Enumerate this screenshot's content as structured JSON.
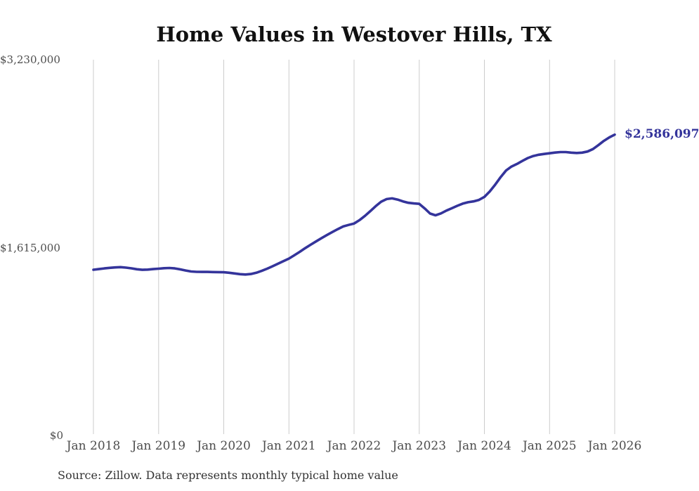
{
  "title": "Home Values in Westover Hills, TX",
  "source_note": "Source: Zillow. Data represents monthly typical home value",
  "latest_value_label": "$2,586,097",
  "colors": {
    "line": "#34349b",
    "grid": "#cccccc",
    "axis_text": "#4d4d4d",
    "title_text": "#111111",
    "source_text": "#333333",
    "background": "#ffffff"
  },
  "chart_data": {
    "type": "line",
    "title": "Home Values in Westover Hills, TX",
    "xlabel": "",
    "ylabel": "",
    "legend": "none",
    "grid": "vertical-only",
    "ylim": [
      0,
      3230000
    ],
    "y_ticks": [
      {
        "label": "$0",
        "value": 0
      },
      {
        "label": "$1,615,000",
        "value": 1615000
      },
      {
        "label": "$3,230,000",
        "value": 3230000
      }
    ],
    "x_tick_labels": [
      "Jan 2018",
      "Jan 2019",
      "Jan 2020",
      "Jan 2021",
      "Jan 2022",
      "Jan 2023",
      "Jan 2024",
      "Jan 2025",
      "Jan 2026"
    ],
    "x_start": "Jan 2018",
    "x_end": "Jan 2026",
    "x_frequency": "monthly",
    "series_name": "Typical home value",
    "values": [
      1425000,
      1430000,
      1436000,
      1441000,
      1445000,
      1447000,
      1443000,
      1437000,
      1429000,
      1424000,
      1426000,
      1430000,
      1434000,
      1438000,
      1440000,
      1436000,
      1428000,
      1418000,
      1410000,
      1407000,
      1406000,
      1406000,
      1405000,
      1404000,
      1403000,
      1399000,
      1393000,
      1387000,
      1384000,
      1388000,
      1399000,
      1415000,
      1434000,
      1455000,
      1477000,
      1499000,
      1521000,
      1549000,
      1579000,
      1610000,
      1640000,
      1668000,
      1696000,
      1723000,
      1749000,
      1774000,
      1797000,
      1810000,
      1822000,
      1851000,
      1888000,
      1929000,
      1972000,
      2010000,
      2032000,
      2038000,
      2028000,
      2012000,
      2000000,
      1995000,
      1991000,
      1952000,
      1908000,
      1893000,
      1909000,
      1933000,
      1953000,
      1974000,
      1993000,
      2005000,
      2012000,
      2025000,
      2051000,
      2098000,
      2157000,
      2221000,
      2278000,
      2312000,
      2334000,
      2360000,
      2385000,
      2402000,
      2413000,
      2420000,
      2426000,
      2432000,
      2436000,
      2436000,
      2431000,
      2428000,
      2431000,
      2441000,
      2462000,
      2496000,
      2532000,
      2562000,
      2586097
    ],
    "last_value": 2586097
  }
}
